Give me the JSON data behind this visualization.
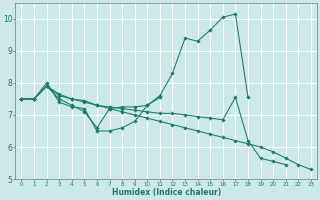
{
  "x": [
    0,
    1,
    2,
    3,
    4,
    5,
    6,
    7,
    8,
    9,
    10,
    11,
    12,
    13,
    14,
    15,
    16,
    17,
    18,
    19,
    20,
    21,
    22,
    23
  ],
  "line1": [
    7.5,
    7.5,
    8.0,
    7.4,
    7.25,
    7.2,
    6.5,
    6.5,
    6.6,
    6.8,
    7.3,
    7.6,
    8.3,
    9.4,
    9.3,
    9.65,
    10.05,
    10.15,
    7.55,
    null,
    null,
    null,
    null,
    null
  ],
  "line2": [
    7.5,
    7.5,
    7.9,
    7.5,
    7.3,
    7.1,
    6.6,
    7.2,
    7.25,
    7.25,
    7.3,
    7.55,
    null,
    null,
    null,
    null,
    null,
    null,
    null,
    null,
    null,
    null,
    null,
    null
  ],
  "line3": [
    7.5,
    7.5,
    7.9,
    7.6,
    7.5,
    7.45,
    7.3,
    7.25,
    7.2,
    7.15,
    7.1,
    7.05,
    7.05,
    7.0,
    6.95,
    6.9,
    6.85,
    7.55,
    6.2,
    5.65,
    5.55,
    5.45,
    null,
    null
  ],
  "line4": [
    7.5,
    7.5,
    7.9,
    7.65,
    7.5,
    7.4,
    7.3,
    7.2,
    7.1,
    7.0,
    6.9,
    6.8,
    6.7,
    6.6,
    6.5,
    6.4,
    6.3,
    6.2,
    6.1,
    6.0,
    5.85,
    5.65,
    5.45,
    5.3
  ],
  "bg_color": "#cce8e8",
  "line_color": "#1a7a6a",
  "grid_color": "#ffffff",
  "tick_color": "#1a7a6a",
  "xlabel": "Humidex (Indice chaleur)",
  "ylim": [
    5.0,
    10.5
  ],
  "xlim_min": -0.5,
  "xlim_max": 23.5,
  "yticks": [
    5,
    6,
    7,
    8,
    9,
    10
  ],
  "xticks": [
    0,
    1,
    2,
    3,
    4,
    5,
    6,
    7,
    8,
    9,
    10,
    11,
    12,
    13,
    14,
    15,
    16,
    17,
    18,
    19,
    20,
    21,
    22,
    23
  ],
  "tick_fontsize": 4.0,
  "xlabel_fontsize": 5.5,
  "ytick_fontsize": 5.5
}
